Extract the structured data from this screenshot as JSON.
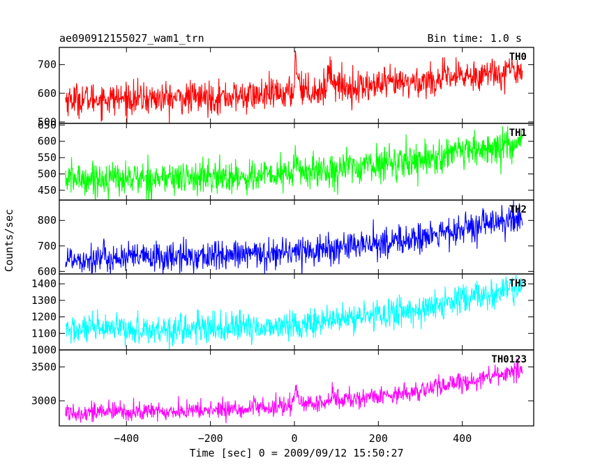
{
  "header": {
    "title": "ae090912155027_wam1_trn",
    "bin_time": "Bin time: 1.0 s"
  },
  "axes": {
    "xlabel": "Time [sec] 0 = 2009/09/12 15:50:27",
    "ylabel": "Counts/sec"
  },
  "chart_data": {
    "type": "line",
    "xlim": [
      -560,
      570
    ],
    "x_ticks": [
      -400,
      -200,
      0,
      200,
      400
    ],
    "x_tick_labels": [
      "−400",
      "−200",
      "0",
      "200",
      "400"
    ],
    "x_range": [
      -545,
      543
    ],
    "series": [
      {
        "name": "TH0",
        "color": "#ff0000",
        "ylim": [
          495,
          760
        ],
        "yticks": [
          500,
          600,
          700
        ],
        "ytick_labels": [
          "500",
          "600",
          "700"
        ],
        "noise": 28,
        "trend": [
          [
            -545,
            580
          ],
          [
            -300,
            582
          ],
          [
            -100,
            590
          ],
          [
            -10,
            600
          ],
          [
            100,
            615
          ],
          [
            300,
            640
          ],
          [
            543,
            685
          ]
        ],
        "peaks": [
          [
            2,
            135,
            8
          ],
          [
            80,
            85,
            14
          ]
        ]
      },
      {
        "name": "TH1",
        "color": "#00ff00",
        "ylim": [
          420,
          655
        ],
        "yticks": [
          450,
          500,
          550,
          600,
          650
        ],
        "ytick_labels": [
          "450",
          "500",
          "550",
          "600",
          "650"
        ],
        "noise": 26,
        "trend": [
          [
            -545,
            485
          ],
          [
            -300,
            487
          ],
          [
            -100,
            492
          ],
          [
            0,
            500
          ],
          [
            100,
            515
          ],
          [
            300,
            545
          ],
          [
            543,
            590
          ]
        ],
        "peaks": [
          [
            2,
            60,
            6
          ]
        ]
      },
      {
        "name": "TH2",
        "color": "#0000ff",
        "ylim": [
          590,
          880
        ],
        "yticks": [
          600,
          700,
          800
        ],
        "ytick_labels": [
          "600",
          "700",
          "800"
        ],
        "noise": 30,
        "trend": [
          [
            -545,
            650
          ],
          [
            -300,
            655
          ],
          [
            -100,
            665
          ],
          [
            0,
            680
          ],
          [
            100,
            690
          ],
          [
            300,
            730
          ],
          [
            543,
            810
          ]
        ],
        "peaks": []
      },
      {
        "name": "TH3",
        "color": "#00ffff",
        "ylim": [
          1000,
          1460
        ],
        "yticks": [
          1000,
          1100,
          1200,
          1300,
          1400
        ],
        "ytick_labels": [
          "1000",
          "1100",
          "1200",
          "1300",
          "1400"
        ],
        "noise": 45,
        "trend": [
          [
            -545,
            1120
          ],
          [
            -300,
            1125
          ],
          [
            -100,
            1135
          ],
          [
            0,
            1150
          ],
          [
            100,
            1180
          ],
          [
            300,
            1245
          ],
          [
            543,
            1380
          ]
        ],
        "peaks": []
      },
      {
        "name": "TH0123",
        "color": "#ff00ff",
        "ylim": [
          2630,
          3750
        ],
        "yticks": [
          3000,
          3500
        ],
        "ytick_labels": [
          "3000",
          "3500"
        ],
        "noise": 70,
        "trend": [
          [
            -545,
            2835
          ],
          [
            -300,
            2840
          ],
          [
            -100,
            2885
          ],
          [
            0,
            2920
          ],
          [
            100,
            2990
          ],
          [
            300,
            3150
          ],
          [
            543,
            3450
          ]
        ],
        "peaks": [
          [
            2,
            330,
            8
          ],
          [
            90,
            120,
            16
          ]
        ]
      }
    ]
  }
}
